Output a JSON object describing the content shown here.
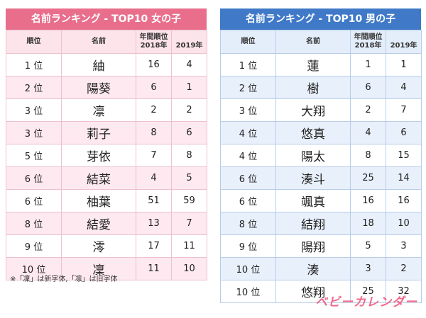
{
  "girls": {
    "title": "名前ランキング - TOP10 女の子",
    "headers": {
      "rank": "順位",
      "name": "名前",
      "period": "年間順位",
      "y2018": "2018年",
      "y2019": "2019年"
    },
    "rows": [
      {
        "rank": "1 位",
        "name": "紬",
        "y2018": "16",
        "y2019": "4"
      },
      {
        "rank": "2 位",
        "name": "陽葵",
        "y2018": "6",
        "y2019": "1"
      },
      {
        "rank": "3 位",
        "name": "凛",
        "y2018": "2",
        "y2019": "2"
      },
      {
        "rank": "3 位",
        "name": "莉子",
        "y2018": "8",
        "y2019": "6"
      },
      {
        "rank": "5 位",
        "name": "芽依",
        "y2018": "7",
        "y2019": "8"
      },
      {
        "rank": "6 位",
        "name": "結菜",
        "y2018": "4",
        "y2019": "5"
      },
      {
        "rank": "6 位",
        "name": "柚葉",
        "y2018": "51",
        "y2019": "59"
      },
      {
        "rank": "8 位",
        "name": "結愛",
        "y2018": "13",
        "y2019": "7"
      },
      {
        "rank": "9 位",
        "name": "澪",
        "y2018": "17",
        "y2019": "11"
      },
      {
        "rank": "10 位",
        "name": "凜",
        "y2018": "11",
        "y2019": "10"
      }
    ]
  },
  "boys": {
    "title": "名前ランキング - TOP10 男の子",
    "headers": {
      "rank": "順位",
      "name": "名前",
      "period": "年間順位",
      "y2018": "2018年",
      "y2019": "2019年"
    },
    "rows": [
      {
        "rank": "1 位",
        "name": "蓮",
        "y2018": "1",
        "y2019": "1"
      },
      {
        "rank": "2 位",
        "name": "樹",
        "y2018": "6",
        "y2019": "4"
      },
      {
        "rank": "3 位",
        "name": "大翔",
        "y2018": "2",
        "y2019": "7"
      },
      {
        "rank": "4 位",
        "name": "悠真",
        "y2018": "4",
        "y2019": "6"
      },
      {
        "rank": "4 位",
        "name": "陽太",
        "y2018": "8",
        "y2019": "15"
      },
      {
        "rank": "6 位",
        "name": "湊斗",
        "y2018": "25",
        "y2019": "14"
      },
      {
        "rank": "6 位",
        "name": "颯真",
        "y2018": "16",
        "y2019": "16"
      },
      {
        "rank": "8 位",
        "name": "結翔",
        "y2018": "18",
        "y2019": "10"
      },
      {
        "rank": "9 位",
        "name": "陽翔",
        "y2018": "5",
        "y2019": "3"
      },
      {
        "rank": "10 位",
        "name": "湊",
        "y2018": "3",
        "y2019": "2"
      },
      {
        "rank": "10 位",
        "name": "悠翔",
        "y2018": "25",
        "y2019": "32"
      }
    ]
  },
  "note": "※「凜」は新字体,「凛」は旧字体",
  "logo": "ベビーカレンダー",
  "colors": {
    "girls_accent": "#e86e8c",
    "boys_accent": "#3f79c8",
    "logo": "#ef6a8c"
  }
}
